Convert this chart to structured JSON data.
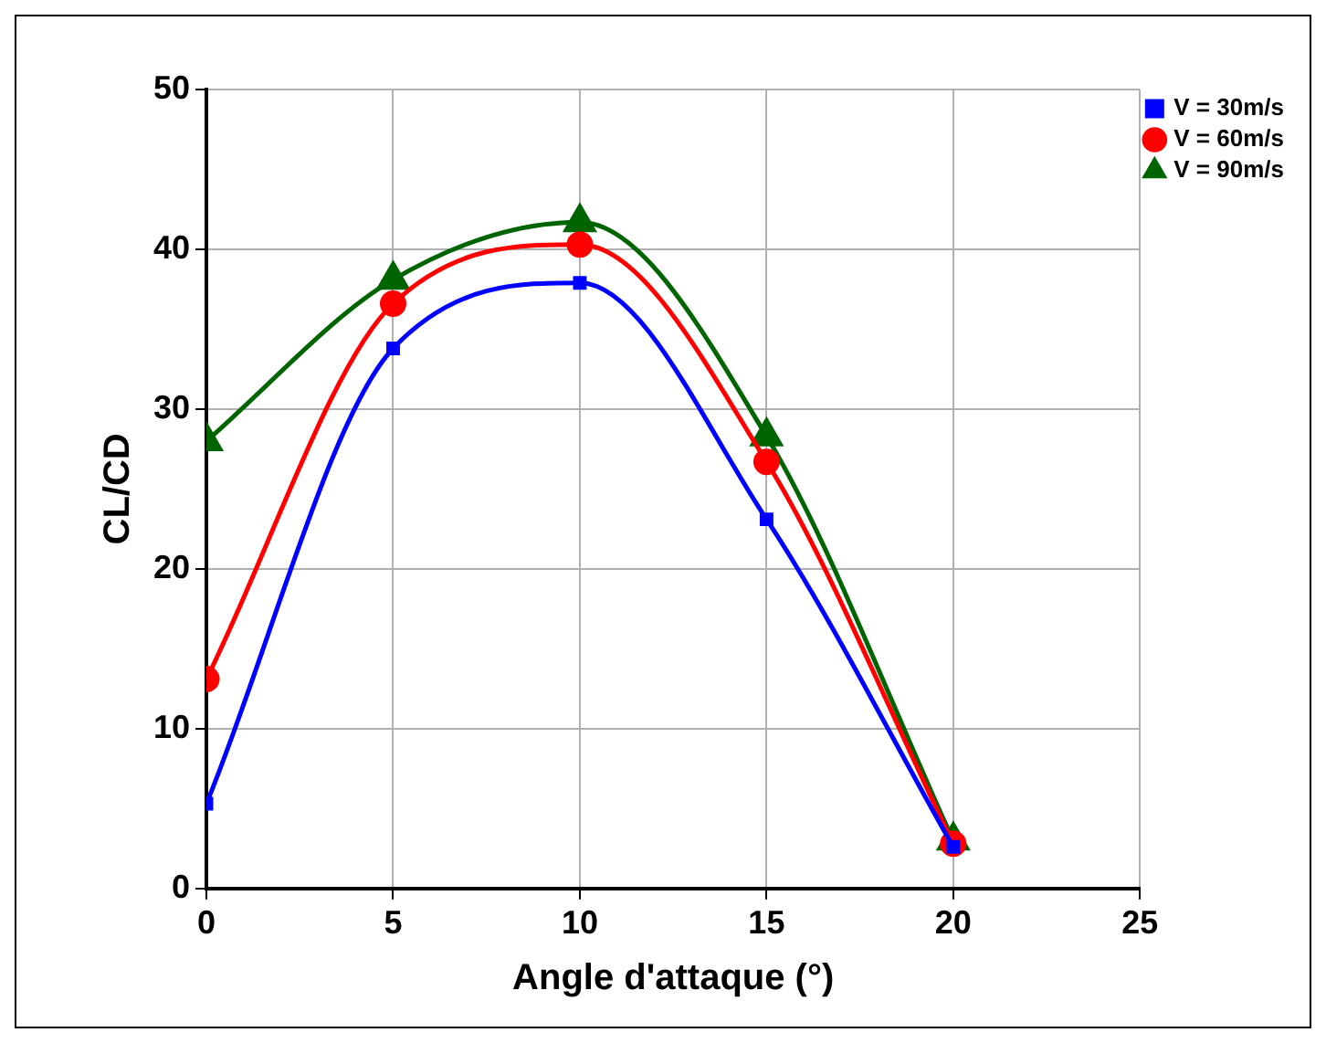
{
  "chart_data": {
    "type": "line",
    "xlabel": "Angle d'attaque (°)",
    "ylabel": "CL/CD",
    "x": [
      0,
      5,
      10,
      15,
      20
    ],
    "series": [
      {
        "name": "V = 30m/s",
        "color": "#0000ff",
        "marker": "square",
        "values": [
          5.3,
          33.8,
          37.9,
          23.1,
          2.6
        ]
      },
      {
        "name": "V = 60m/s",
        "color": "#ff0000",
        "marker": "circle",
        "values": [
          13.1,
          36.6,
          40.3,
          26.7,
          2.8
        ]
      },
      {
        "name": "V = 90m/s",
        "color": "#006400",
        "marker": "triangle",
        "values": [
          28.0,
          38.1,
          41.7,
          28.3,
          3.0
        ]
      }
    ],
    "xlim": [
      0,
      25
    ],
    "xticks": [
      0,
      5,
      10,
      15,
      20,
      25
    ],
    "ylim": [
      0,
      50
    ],
    "yticks": [
      0,
      10,
      20,
      30,
      40,
      50
    ],
    "grid": true,
    "legend": "top right"
  }
}
